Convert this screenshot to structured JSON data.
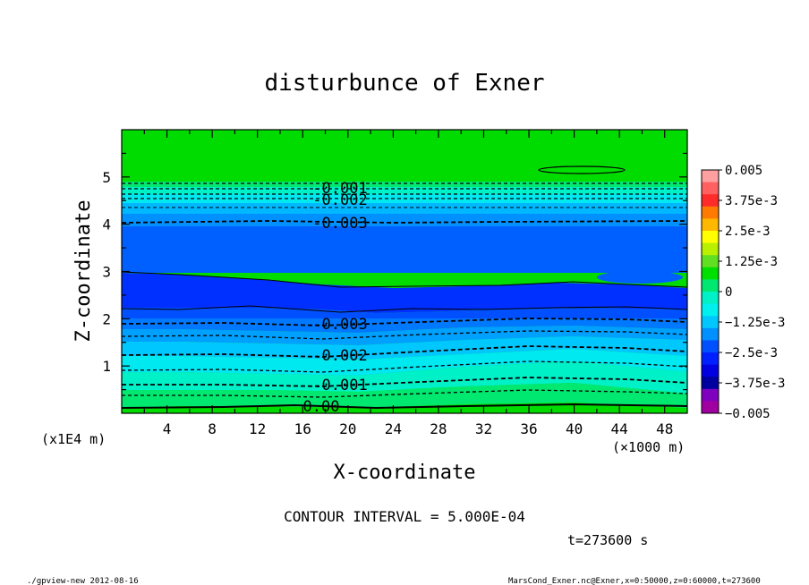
{
  "chart_data": {
    "type": "contour",
    "title": "disturbunce of Exner",
    "xlabel": "X-coordinate",
    "ylabel": "Z-coordinate",
    "x_unit": "(×1000 m)",
    "y_unit": "(x1E4 m)",
    "xlim": [
      0,
      50
    ],
    "ylim": [
      0,
      6
    ],
    "x_ticks": [
      "4",
      "8",
      "12",
      "16",
      "20",
      "24",
      "28",
      "32",
      "36",
      "40",
      "44",
      "48"
    ],
    "y_ticks": [
      "1",
      "2",
      "3",
      "4",
      "5"
    ],
    "contour_interval_text": "CONTOUR INTERVAL = 5.000E-04",
    "time_text": "t=273600 s",
    "contour_labels": [
      {
        "text": "-0.001",
        "x": 19,
        "z": 5.0
      },
      {
        "text": "-0.002",
        "x": 19,
        "z": 4.8
      },
      {
        "text": "-0.003",
        "x": 19,
        "z": 4.0
      },
      {
        "text": "-0.003",
        "x": 19,
        "z": 1.85
      },
      {
        "text": "-0.002",
        "x": 19,
        "z": 1.2
      },
      {
        "text": "-0.001",
        "x": 19,
        "z": 0.6
      },
      {
        "text": "0.00",
        "x": 17.5,
        "z": 0.1
      }
    ],
    "colorbar": {
      "labels": [
        "0.005",
        "3.75e-3",
        "2.5e-3",
        "1.25e-3",
        "0",
        "−1.25e-3",
        "−2.5e-3",
        "−3.75e-3",
        "−0.005"
      ],
      "values": [
        0.005,
        0.00375,
        0.0025,
        0.00125,
        0,
        -0.00125,
        -0.0025,
        -0.00375,
        -0.005
      ],
      "colors": [
        "#ffa0a0",
        "#ff6060",
        "#ff2a2a",
        "#ff7a00",
        "#ffb800",
        "#ffff00",
        "#b8f000",
        "#60e020",
        "#00e000",
        "#00e870",
        "#00f0c8",
        "#00f0f0",
        "#00c8ff",
        "#0090ff",
        "#0050ff",
        "#0020ff",
        "#0000e0",
        "#0000a0",
        "#8000c0",
        "#a000a0"
      ]
    },
    "footer_left": "./gpview-new  2012-08-16",
    "footer_right": "MarsCond_Exner.nc@Exner,x=0:50000,z=0:60000,t=273600"
  }
}
